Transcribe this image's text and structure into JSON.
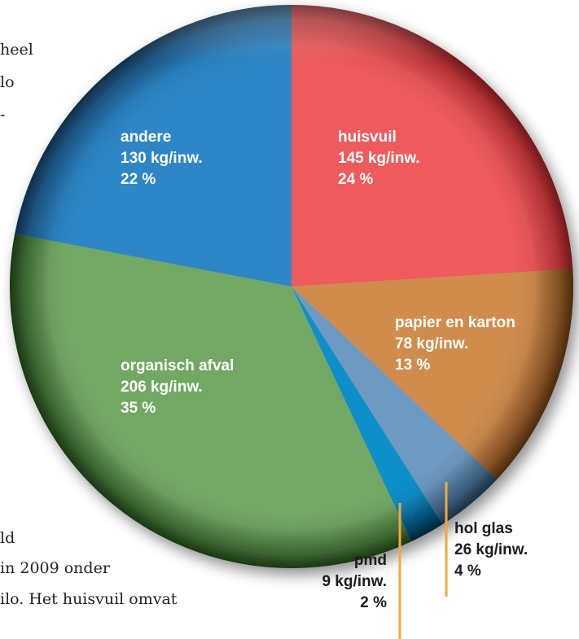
{
  "page_text": {
    "fragments": [
      "heel",
      "lo",
      "-",
      "ld",
      "in 2009 onder",
      "ilo. Het huisvuil omvat"
    ]
  },
  "chart_data": {
    "type": "pie",
    "title": "",
    "slices": [
      {
        "name": "huisvuil",
        "amount": "145 kg/inw.",
        "percent": "24 %",
        "value": 24,
        "color": "#ef5a5b",
        "dark": "#b8282c"
      },
      {
        "name": "papier en karton",
        "amount": "78 kg/inw.",
        "percent": "13 %",
        "value": 13,
        "color": "#cf8c4e",
        "dark": "#7a4415"
      },
      {
        "name": "hol glas",
        "amount": "26 kg/inw.",
        "percent": "4 %",
        "value": 4,
        "color": "#6e9ac2",
        "dark": "#2c4f6e"
      },
      {
        "name": "pmd",
        "amount": "9 kg/inw.",
        "percent": "2 %",
        "value": 2,
        "color": "#0a8fca",
        "dark": "#043d5c"
      },
      {
        "name": "organisch afval",
        "amount": "206 kg/inw.",
        "percent": "35 %",
        "value": 35,
        "color": "#72a864",
        "dark": "#2d5a22"
      },
      {
        "name": "andere",
        "amount": "130 kg/inw.",
        "percent": "22 %",
        "value": 22,
        "color": "#2e86c6",
        "dark": "#184d78"
      }
    ],
    "leader_color": "#f0a93c"
  }
}
